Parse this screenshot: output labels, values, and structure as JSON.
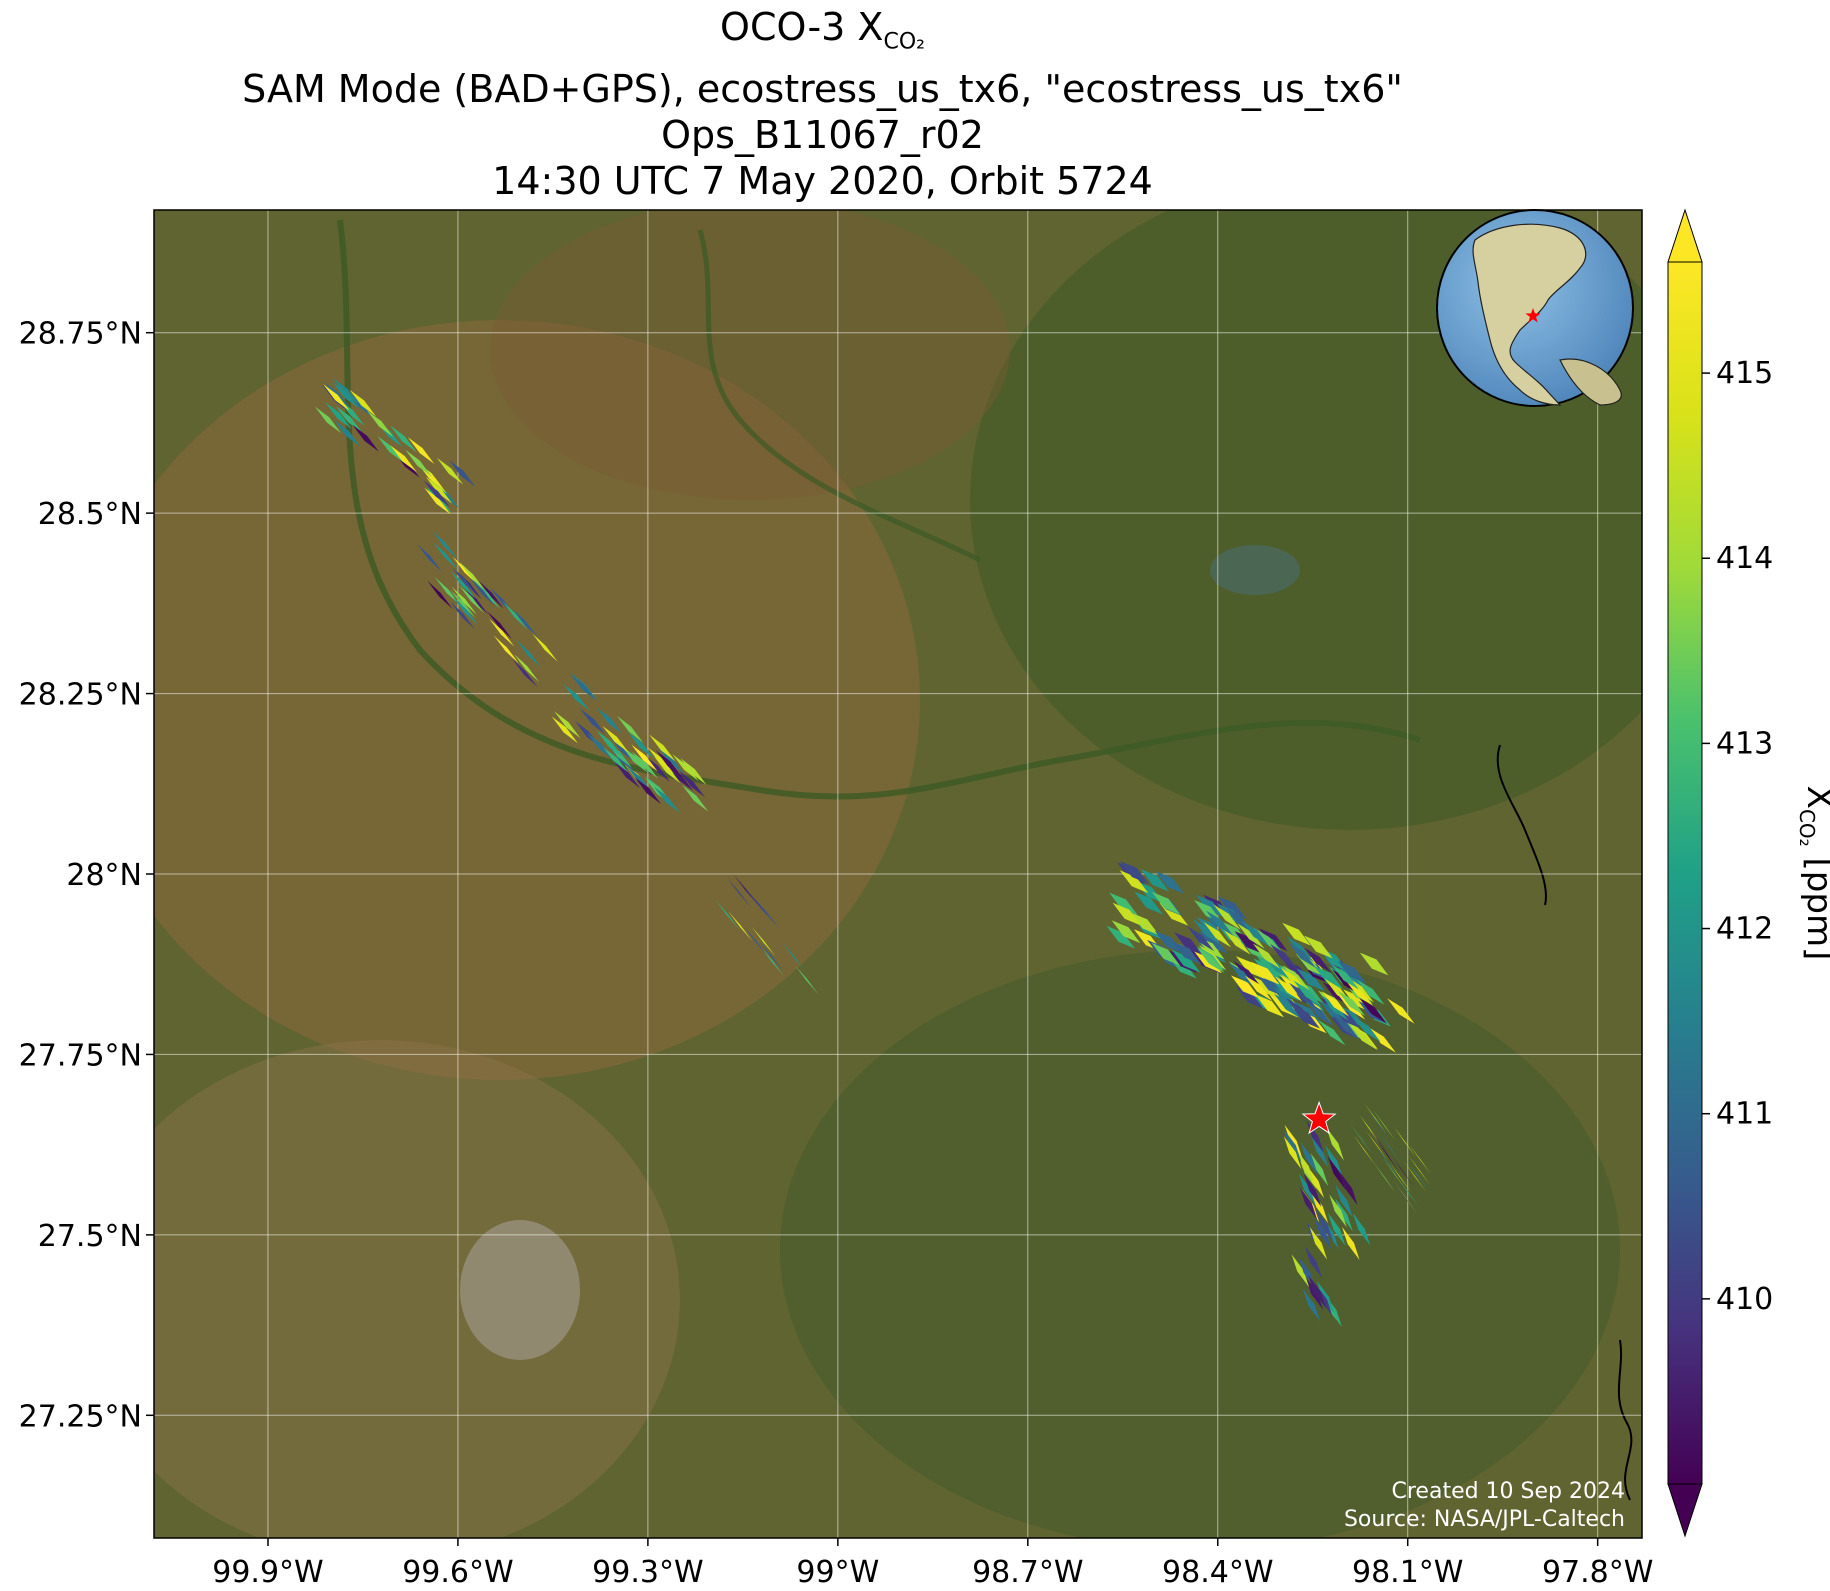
{
  "title": {
    "line1_prefix": "OCO-3 X",
    "line1_sub": "CO₂",
    "line2": "SAM Mode (BAD+GPS), ecostress_us_tx6, \"ecostress_us_tx6\"",
    "line3": "Ops_B11067_r02",
    "line4": "14:30 UTC 7 May 2020, Orbit 5724"
  },
  "map": {
    "lon_range": [
      -100.08,
      -97.73
    ],
    "lat_range": [
      27.08,
      28.92
    ],
    "lon_ticks": [
      {
        "value": -99.9,
        "label": "99.9°W"
      },
      {
        "value": -99.6,
        "label": "99.6°W"
      },
      {
        "value": -99.3,
        "label": "99.3°W"
      },
      {
        "value": -99.0,
        "label": "99°W"
      },
      {
        "value": -98.7,
        "label": "98.7°W"
      },
      {
        "value": -98.4,
        "label": "98.4°W"
      },
      {
        "value": -98.1,
        "label": "98.1°W"
      },
      {
        "value": -97.8,
        "label": "97.8°W"
      }
    ],
    "lat_ticks": [
      {
        "value": 28.75,
        "label": "28.75°N"
      },
      {
        "value": 28.5,
        "label": "28.5°N"
      },
      {
        "value": 28.25,
        "label": "28.25°N"
      },
      {
        "value": 28.0,
        "label": "28°N"
      },
      {
        "value": 27.75,
        "label": "27.75°N"
      },
      {
        "value": 27.5,
        "label": "27.5°N"
      },
      {
        "value": 27.25,
        "label": "27.25°N"
      }
    ],
    "target_marker": {
      "lon": -98.24,
      "lat": 27.66,
      "color": "#ff0000"
    },
    "inset_globe": {
      "marker_color": "#ff0000"
    },
    "credits": {
      "created": "Created 10 Sep 2024",
      "source": "Source: NASA/JPL-Caltech"
    },
    "swaths": [
      {
        "from": [
          -99.8,
          28.66
        ],
        "to": [
          -99.6,
          28.53
        ],
        "width": 0.07,
        "n": 30,
        "seed": 3
      },
      {
        "from": [
          -99.66,
          28.45
        ],
        "to": [
          -99.46,
          28.29
        ],
        "width": 0.07,
        "n": 30,
        "seed": 7
      },
      {
        "from": [
          -99.43,
          28.24
        ],
        "to": [
          -99.22,
          28.1
        ],
        "width": 0.08,
        "n": 38,
        "seed": 11
      },
      {
        "from": [
          -99.2,
          28.0
        ],
        "to": [
          -99.05,
          27.85
        ],
        "width": 0.05,
        "n": 12,
        "seed": 19
      },
      {
        "from": [
          -98.56,
          27.96
        ],
        "to": [
          -98.14,
          27.81
        ],
        "width": 0.13,
        "n": 95,
        "seed": 23
      },
      {
        "from": [
          -98.42,
          27.93
        ],
        "to": [
          -98.12,
          27.77
        ],
        "width": 0.09,
        "n": 55,
        "seed": 29
      },
      {
        "from": [
          -98.26,
          27.64
        ],
        "to": [
          -98.2,
          27.48
        ],
        "width": 0.08,
        "n": 30,
        "seed": 31
      },
      {
        "from": [
          -98.16,
          27.66
        ],
        "to": [
          -98.08,
          27.56
        ],
        "width": 0.07,
        "n": 24,
        "seed": 37
      },
      {
        "from": [
          -98.26,
          27.47
        ],
        "to": [
          -98.23,
          27.39
        ],
        "width": 0.04,
        "n": 10,
        "seed": 41
      }
    ]
  },
  "colorbar": {
    "label_prefix": "X",
    "label_sub": "CO₂",
    "label_suffix": " [ppm]",
    "min": 409.0,
    "max": 415.6,
    "ticks": [
      410,
      411,
      412,
      413,
      414,
      415
    ],
    "colormap": "viridis"
  }
}
